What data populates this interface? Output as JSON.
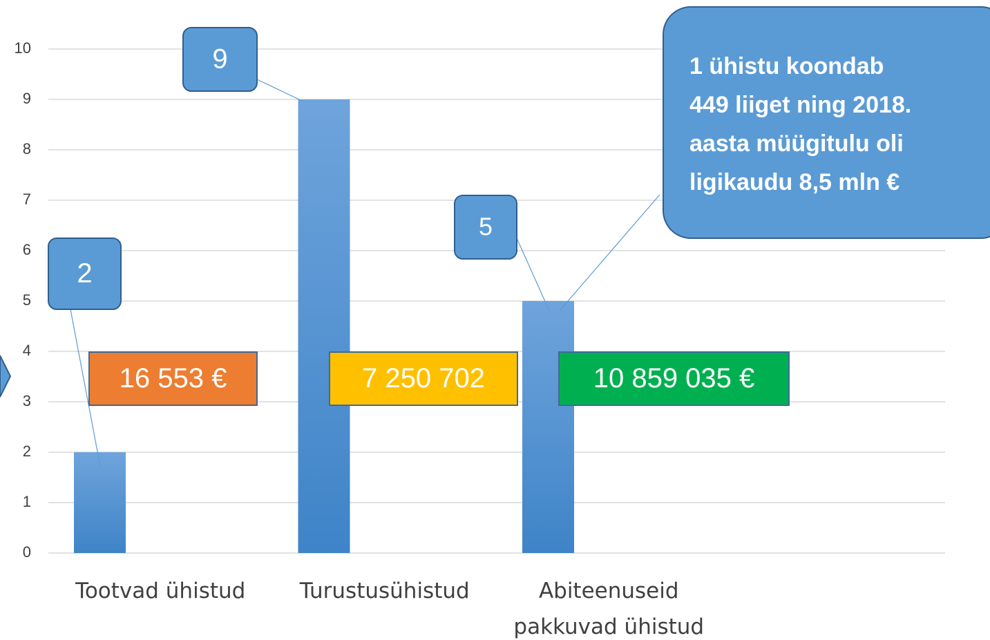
{
  "chart_data": {
    "type": "bar",
    "categories": [
      "Tootvad ühistud",
      "Turustusühistud",
      "Abiteenuseid\npakkuvad ühistud",
      null
    ],
    "values": [
      2,
      9,
      5,
      null
    ],
    "color": "#5b9bd5",
    "ylim": [
      0,
      10
    ],
    "yticks": [
      0,
      1,
      2,
      3,
      4,
      5,
      6,
      7,
      8,
      9,
      10
    ],
    "grid": true,
    "annotations": [
      {
        "text": "16 553 €",
        "color": "#ed7d31"
      },
      {
        "text": "7 250 702",
        "color": "#ffc000"
      },
      {
        "text": "10 859 035 €",
        "color": "#00b050"
      },
      {
        "text": "1 ühistu koondab\n449 liiget ning 2018.\naasta müügitulu oli\nligikaudu 8,5 mln €",
        "color": "#5b9bd5"
      }
    ]
  }
}
